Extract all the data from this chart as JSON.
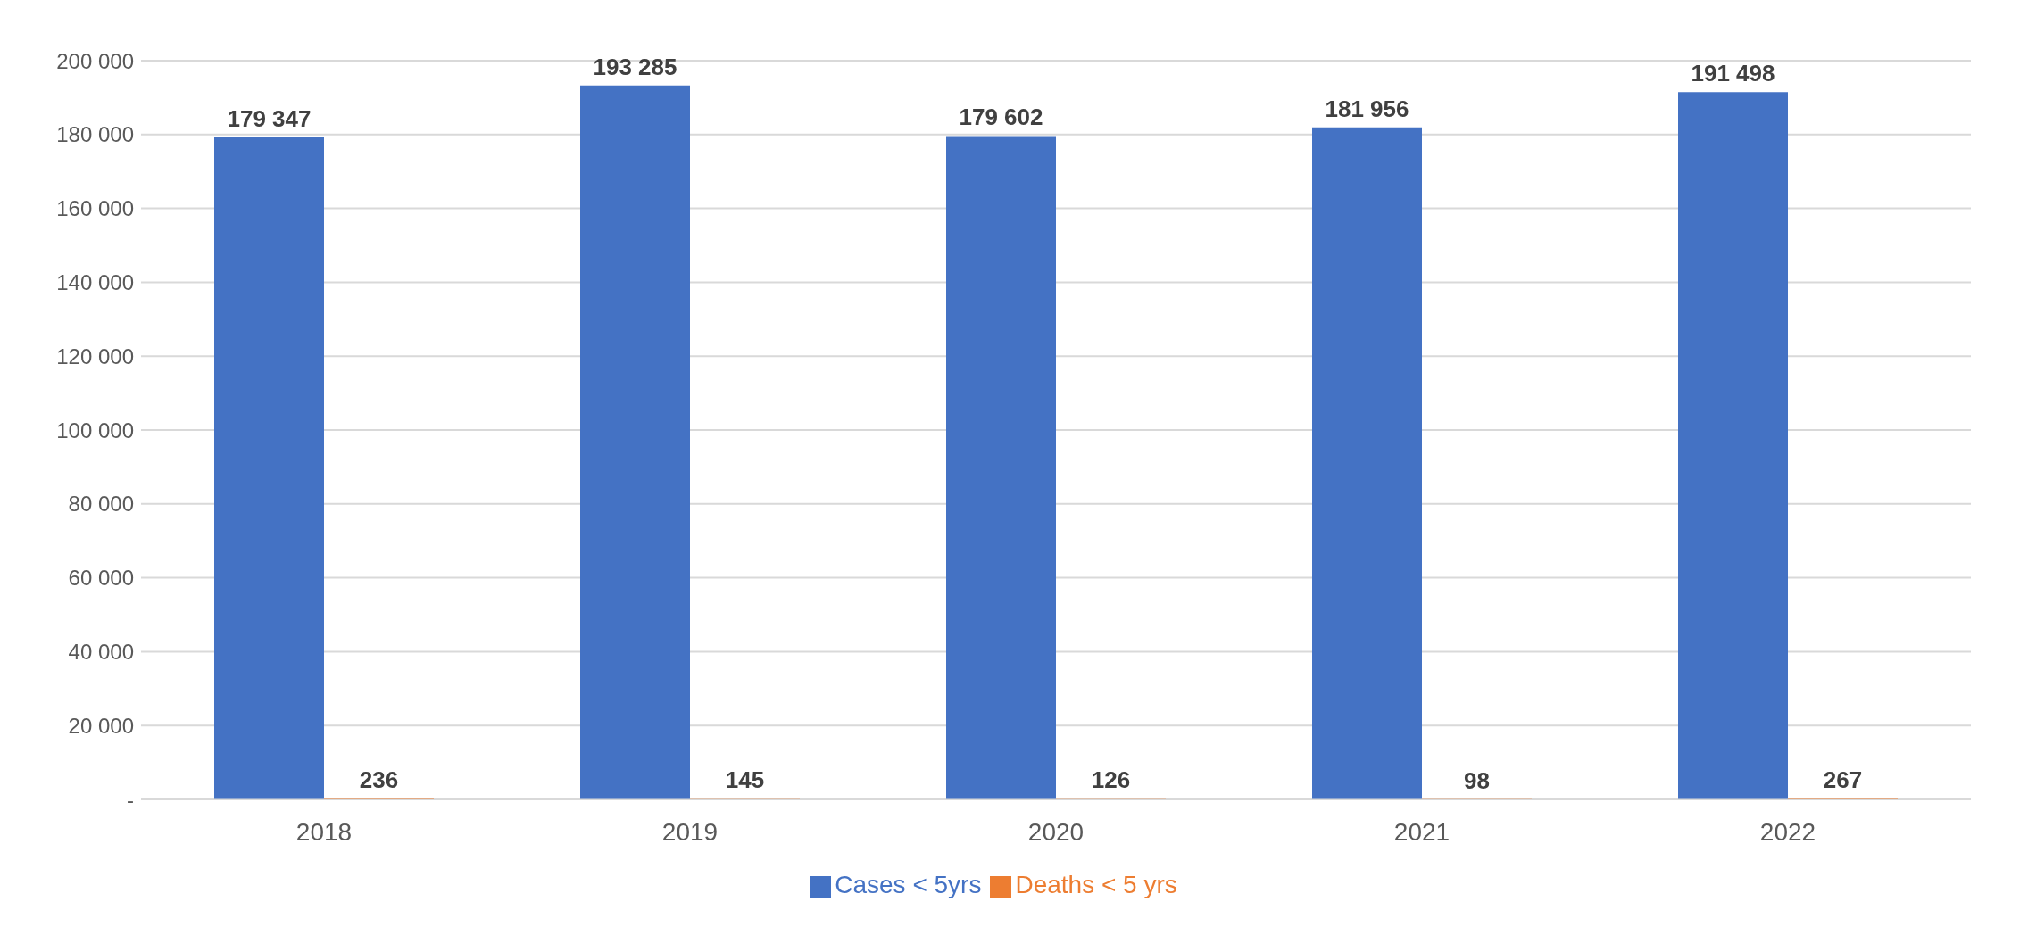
{
  "chart_data": {
    "type": "bar",
    "categories": [
      "2018",
      "2019",
      "2020",
      "2021",
      "2022"
    ],
    "series": [
      {
        "name": "Cases < 5yrs",
        "color": "#4472c4",
        "values": [
          179347,
          193285,
          179602,
          181956,
          191498
        ],
        "value_labels": [
          "179 347",
          "193 285",
          "179 602",
          "181 956",
          "191 498"
        ]
      },
      {
        "name": "Deaths < 5 yrs",
        "color": "#ed7d31",
        "values": [
          236,
          145,
          126,
          98,
          267
        ],
        "value_labels": [
          "236",
          "145",
          "126",
          "98",
          "267"
        ]
      }
    ],
    "ylim": [
      0,
      200000
    ],
    "yticks": [
      {
        "value": 0,
        "label": "-"
      },
      {
        "value": 20000,
        "label": "20 000"
      },
      {
        "value": 40000,
        "label": "40 000"
      },
      {
        "value": 60000,
        "label": "60 000"
      },
      {
        "value": 80000,
        "label": "80 000"
      },
      {
        "value": 100000,
        "label": "100 000"
      },
      {
        "value": 120000,
        "label": "120 000"
      },
      {
        "value": 140000,
        "label": "140 000"
      },
      {
        "value": 160000,
        "label": "160 000"
      },
      {
        "value": 180000,
        "label": "180 000"
      },
      {
        "value": 200000,
        "label": "200 000"
      }
    ],
    "grid": "y",
    "legend": "bottom"
  }
}
